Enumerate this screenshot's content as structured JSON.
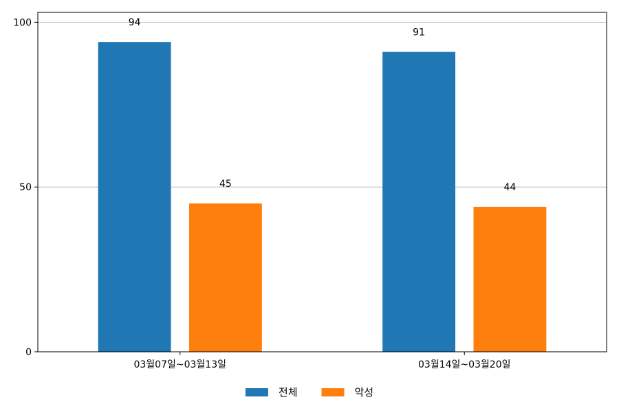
{
  "chart_data": {
    "type": "bar",
    "categories": [
      "03월07일~03월13일",
      "03월14일~03월20일"
    ],
    "series": [
      {
        "name": "전체",
        "values": [
          94,
          91
        ],
        "color": "#1f77b4"
      },
      {
        "name": "악성",
        "values": [
          45,
          44
        ],
        "color": "#ff7f0e"
      }
    ],
    "ylim": [
      0,
      103
    ],
    "yticks": [
      0,
      50,
      100
    ],
    "grid": "horizontal",
    "legend_position": "bottom-center",
    "data_labels": true
  }
}
